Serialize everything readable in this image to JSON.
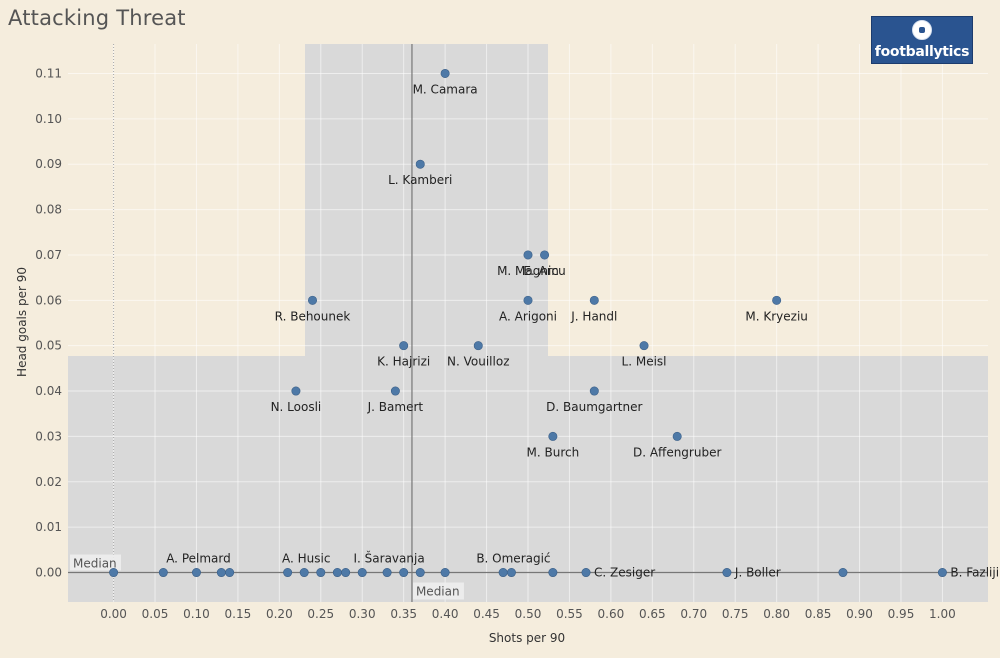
{
  "title": "Attacking Threat",
  "logo": {
    "text": "footballytics",
    "icon": "football-icon"
  },
  "colors": {
    "background": "#f5eddd",
    "region": "#d9d9d9",
    "point": "#4e79a7",
    "median_line": "#777777"
  },
  "chart_data": {
    "type": "scatter",
    "title": "Attacking Threat",
    "xlabel": "Shots per 90",
    "ylabel": "Head goals per 90",
    "xlim": [
      -0.055,
      1.055
    ],
    "ylim": [
      -0.0065,
      0.1165
    ],
    "xticks": [
      "0.00",
      "0.05",
      "0.10",
      "0.15",
      "0.20",
      "0.25",
      "0.30",
      "0.35",
      "0.40",
      "0.45",
      "0.50",
      "0.55",
      "0.60",
      "0.65",
      "0.70",
      "0.75",
      "0.80",
      "0.85",
      "0.90",
      "0.95",
      "1.00"
    ],
    "yticks": [
      "0.00",
      "0.01",
      "0.02",
      "0.03",
      "0.04",
      "0.05",
      "0.06",
      "0.07",
      "0.08",
      "0.09",
      "0.10",
      "0.11"
    ],
    "grid": true,
    "medians": {
      "x": 0.36,
      "y": 0.0,
      "x_label": "Median",
      "y_label": "Median"
    },
    "points": [
      {
        "name": "M. Camara",
        "x": 0.4,
        "y": 0.11
      },
      {
        "name": "L. Kamberi",
        "x": 0.37,
        "y": 0.09
      },
      {
        "name": "M. Magnin",
        "x": 0.5,
        "y": 0.07
      },
      {
        "name": "E. Arcu",
        "x": 0.52,
        "y": 0.07
      },
      {
        "name": "R. Behounek",
        "x": 0.24,
        "y": 0.06
      },
      {
        "name": "A. Arigoni",
        "x": 0.5,
        "y": 0.06
      },
      {
        "name": "J. Handl",
        "x": 0.58,
        "y": 0.06
      },
      {
        "name": "M. Kryeziu",
        "x": 0.8,
        "y": 0.06
      },
      {
        "name": "K. Hajrizi",
        "x": 0.35,
        "y": 0.05
      },
      {
        "name": "N. Vouilloz",
        "x": 0.44,
        "y": 0.05
      },
      {
        "name": "L. Meisl",
        "x": 0.64,
        "y": 0.05
      },
      {
        "name": "N. Loosli",
        "x": 0.22,
        "y": 0.04
      },
      {
        "name": "J. Bamert",
        "x": 0.34,
        "y": 0.04
      },
      {
        "name": "D. Baumgartner",
        "x": 0.58,
        "y": 0.04
      },
      {
        "name": "M. Burch",
        "x": 0.53,
        "y": 0.03
      },
      {
        "name": "D. Affengruber",
        "x": 0.68,
        "y": 0.03
      },
      {
        "name": "",
        "x": 0.0,
        "y": 0.0
      },
      {
        "name": "",
        "x": 0.06,
        "y": 0.0
      },
      {
        "name": "A. Pelmard",
        "x": 0.1,
        "y": 0.0
      },
      {
        "name": "",
        "x": 0.13,
        "y": 0.0
      },
      {
        "name": "",
        "x": 0.14,
        "y": 0.0
      },
      {
        "name": "",
        "x": 0.21,
        "y": 0.0
      },
      {
        "name": "A. Husic",
        "x": 0.23,
        "y": 0.0
      },
      {
        "name": "",
        "x": 0.25,
        "y": 0.0
      },
      {
        "name": "",
        "x": 0.27,
        "y": 0.0
      },
      {
        "name": "",
        "x": 0.28,
        "y": 0.0
      },
      {
        "name": "",
        "x": 0.3,
        "y": 0.0
      },
      {
        "name": "I. Šaravanja",
        "x": 0.33,
        "y": 0.0
      },
      {
        "name": "",
        "x": 0.35,
        "y": 0.0
      },
      {
        "name": "",
        "x": 0.37,
        "y": 0.0
      },
      {
        "name": "",
        "x": 0.4,
        "y": 0.0
      },
      {
        "name": "",
        "x": 0.47,
        "y": 0.0
      },
      {
        "name": "B. Omeragić",
        "x": 0.48,
        "y": 0.0
      },
      {
        "name": "",
        "x": 0.53,
        "y": 0.0
      },
      {
        "name": "C. Zesiger",
        "x": 0.57,
        "y": 0.0
      },
      {
        "name": "J. Boller",
        "x": 0.74,
        "y": 0.0
      },
      {
        "name": "",
        "x": 0.88,
        "y": 0.0
      },
      {
        "name": "B. Fazliji",
        "x": 1.0,
        "y": 0.0
      }
    ]
  }
}
